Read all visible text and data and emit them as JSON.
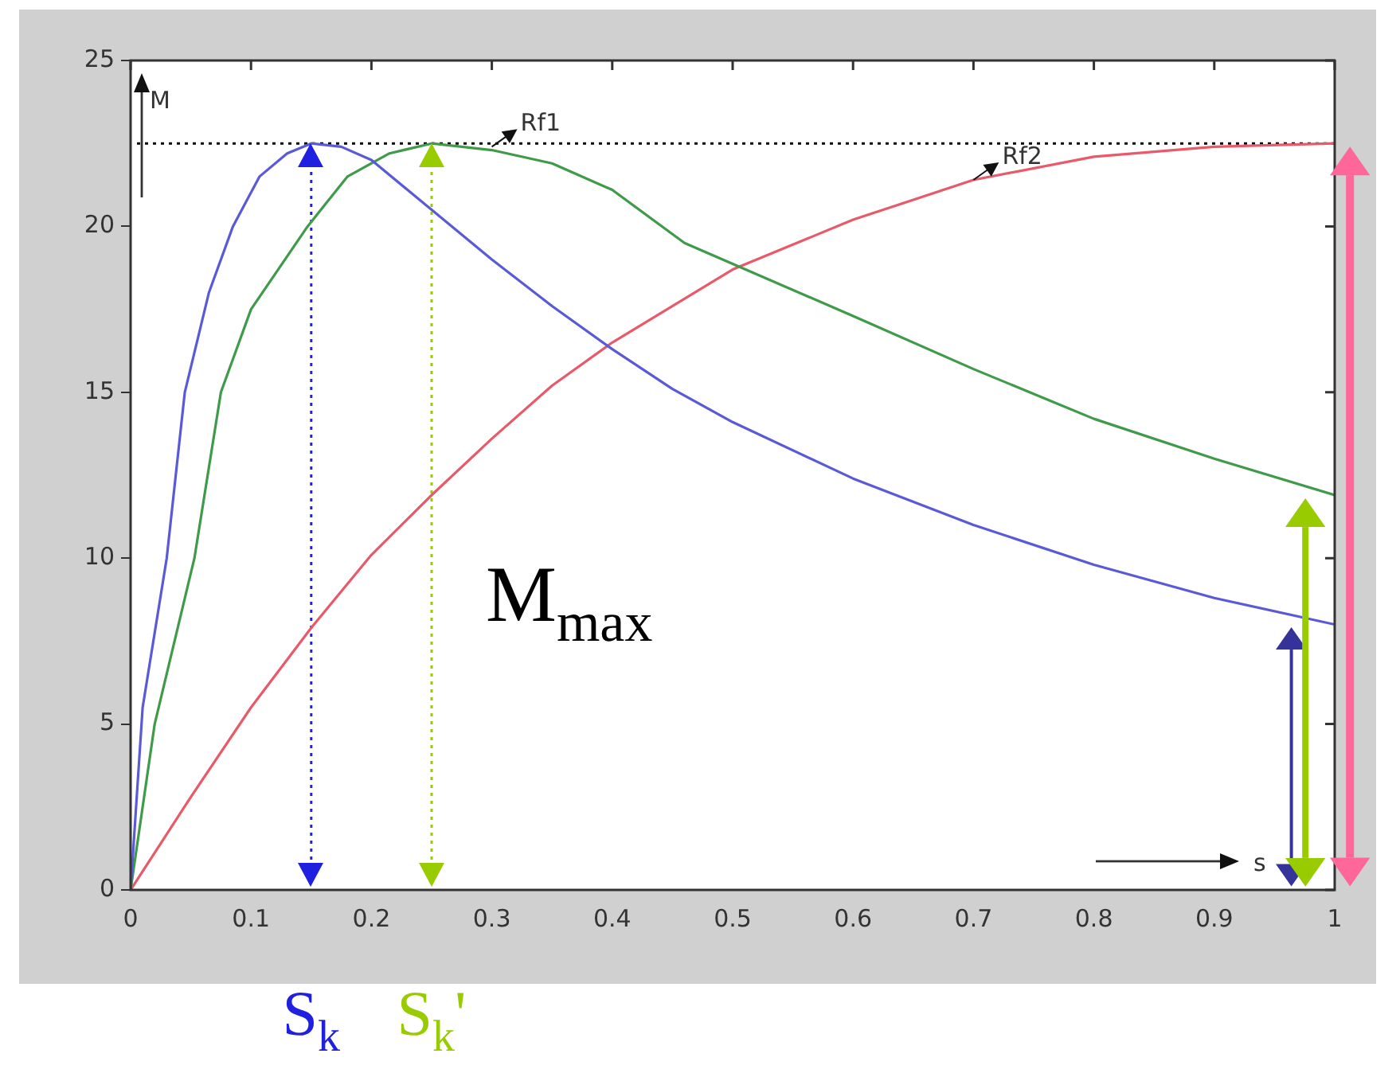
{
  "chart_data": {
    "type": "line",
    "xlabel": "s",
    "ylabel": "M",
    "xlim": [
      0,
      1
    ],
    "ylim": [
      0,
      25
    ],
    "xticks": [
      0,
      0.1,
      0.2,
      0.3,
      0.4,
      0.5,
      0.6,
      0.7,
      0.8,
      0.9,
      1
    ],
    "yticks": [
      0,
      5,
      10,
      15,
      20,
      25
    ],
    "marker": "none",
    "line_style": "solid",
    "series": [
      {
        "color": "#5a5ad8",
        "x": [
          0,
          0.01,
          0.03,
          0.045,
          0.065,
          0.085,
          0.107,
          0.13,
          0.15,
          0.175,
          0.2,
          0.25,
          0.3,
          0.35,
          0.4,
          0.45,
          0.5,
          0.6,
          0.7,
          0.8,
          0.9,
          1
        ],
        "values": [
          0,
          5.5,
          10,
          15,
          18,
          20,
          21.5,
          22.2,
          22.5,
          22.4,
          22,
          20.5,
          19,
          17.6,
          16.3,
          15.1,
          14.1,
          12.4,
          11,
          9.8,
          8.8,
          8
        ]
      },
      {
        "color": "#3f9a4a",
        "x": [
          0,
          0.02,
          0.053,
          0.075,
          0.1,
          0.147,
          0.18,
          0.215,
          0.25,
          0.3,
          0.35,
          0.4,
          0.46,
          0.6,
          0.7,
          0.8,
          0.9,
          1
        ],
        "values": [
          0,
          5,
          10,
          15,
          17.5,
          20,
          21.5,
          22.2,
          22.5,
          22.3,
          21.9,
          21.1,
          19.5,
          17.3,
          15.7,
          14.2,
          13,
          11.9
        ]
      },
      {
        "color": "#e85a6a",
        "x": [
          0,
          0.05,
          0.1,
          0.15,
          0.2,
          0.25,
          0.3,
          0.35,
          0.4,
          0.5,
          0.6,
          0.7,
          0.8,
          0.9,
          1
        ],
        "values": [
          0,
          2.8,
          5.5,
          7.9,
          10.1,
          11.9,
          13.6,
          15.2,
          16.5,
          18.7,
          20.2,
          21.4,
          22.1,
          22.4,
          22.5
        ]
      }
    ],
    "ref_lines": [
      {
        "axis": "y",
        "value": 22.5,
        "color": "#000000",
        "line_style": "dotted"
      },
      {
        "axis": "x",
        "value": 0.15,
        "label": "S$_{k}$",
        "color": "#2020e0",
        "line_style": "dotted"
      },
      {
        "axis": "x",
        "value": 0.25,
        "label": "S$_{k}$'",
        "color": "#99cc00",
        "line_style": "dotted"
      }
    ],
    "annotations": [
      {
        "text": "Rf1",
        "x": 0.3,
        "y": 22.4
      },
      {
        "text": "Rf2",
        "x": 0.7,
        "y": 21.4
      },
      "M$_{max}$"
    ]
  }
}
